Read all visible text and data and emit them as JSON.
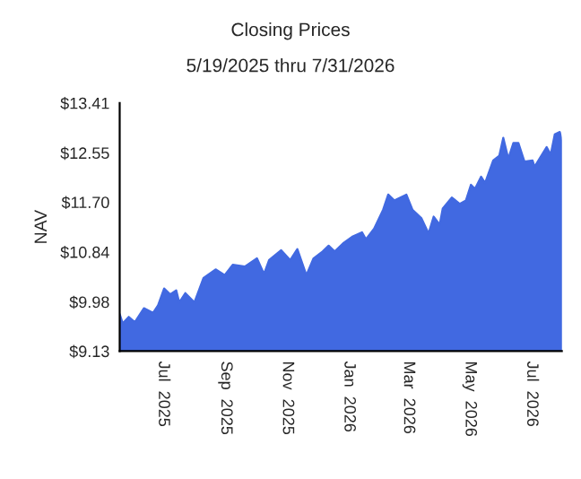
{
  "chart_data": {
    "type": "area",
    "title": "Closing Prices",
    "subtitle": "5/19/2025 thru 7/31/2026",
    "ylabel": "NAV",
    "x": [
      "2025-05-19",
      "2025-05-22",
      "2025-05-28",
      "2025-06-03",
      "2025-06-12",
      "2025-06-21",
      "2025-06-26",
      "2025-07-02",
      "2025-07-08",
      "2025-07-14",
      "2025-07-17",
      "2025-07-23",
      "2025-08-01",
      "2025-08-10",
      "2025-08-22",
      "2025-08-31",
      "2025-09-08",
      "2025-09-20",
      "2025-10-02",
      "2025-10-09",
      "2025-10-14",
      "2025-10-26",
      "2025-11-04",
      "2025-11-11",
      "2025-11-20",
      "2025-11-27",
      "2025-12-06",
      "2025-12-12",
      "2025-12-18",
      "2025-12-27",
      "2026-01-05",
      "2026-01-14",
      "2026-01-18",
      "2026-01-26",
      "2026-02-04",
      "2026-02-09",
      "2026-02-15",
      "2026-02-27",
      "2026-03-05",
      "2026-03-14",
      "2026-03-21",
      "2026-03-26",
      "2026-04-01",
      "2026-04-04",
      "2026-04-13",
      "2026-04-21",
      "2026-04-27",
      "2026-05-02",
      "2026-05-06",
      "2026-05-12",
      "2026-05-16",
      "2026-05-24",
      "2026-05-30",
      "2026-06-03",
      "2026-06-08",
      "2026-06-13",
      "2026-06-18",
      "2026-06-24",
      "2026-07-02",
      "2026-07-04",
      "2026-07-16",
      "2026-07-20",
      "2026-07-24",
      "2026-07-29",
      "2026-07-31"
    ],
    "series": [
      {
        "color": "#4169e1",
        "values": [
          9.77,
          9.61,
          9.72,
          9.63,
          9.87,
          9.79,
          9.92,
          10.21,
          10.11,
          10.18,
          9.97,
          10.13,
          9.97,
          10.39,
          10.54,
          10.44,
          10.62,
          10.59,
          10.73,
          10.46,
          10.7,
          10.87,
          10.7,
          10.89,
          10.44,
          10.73,
          10.85,
          10.95,
          10.85,
          11.0,
          11.11,
          11.18,
          11.06,
          11.24,
          11.57,
          11.83,
          11.73,
          11.83,
          11.57,
          11.42,
          11.16,
          11.45,
          11.31,
          11.59,
          11.78,
          11.67,
          11.73,
          12.0,
          11.93,
          12.14,
          12.03,
          12.42,
          12.5,
          12.81,
          12.45,
          12.72,
          12.72,
          12.4,
          12.42,
          12.31,
          12.65,
          12.52,
          12.87,
          12.91,
          12.76
        ]
      }
    ],
    "xlim": [
      "2025-05-19",
      "2026-07-31"
    ],
    "xticks": [
      {
        "value": "2025-07-01",
        "label": "Jul  2025"
      },
      {
        "value": "2025-09-01",
        "label": "Sep  2025"
      },
      {
        "value": "2025-11-01",
        "label": "Nov  2025"
      },
      {
        "value": "2026-01-01",
        "label": "Jan  2026"
      },
      {
        "value": "2026-03-01",
        "label": "Mar  2026"
      },
      {
        "value": "2026-05-01",
        "label": "May  2026"
      },
      {
        "value": "2026-07-01",
        "label": "Jul  2026"
      }
    ],
    "ylim": [
      9.13,
      13.41
    ],
    "yticks": [
      {
        "value": 9.13,
        "label": "$9.13"
      },
      {
        "value": 9.98,
        "label": "$9.98"
      },
      {
        "value": 10.84,
        "label": "$10.84"
      },
      {
        "value": 11.7,
        "label": "$11.70"
      },
      {
        "value": 12.55,
        "label": "$12.55"
      },
      {
        "value": 13.41,
        "label": "$13.41"
      }
    ],
    "grid": false,
    "legend": false
  }
}
